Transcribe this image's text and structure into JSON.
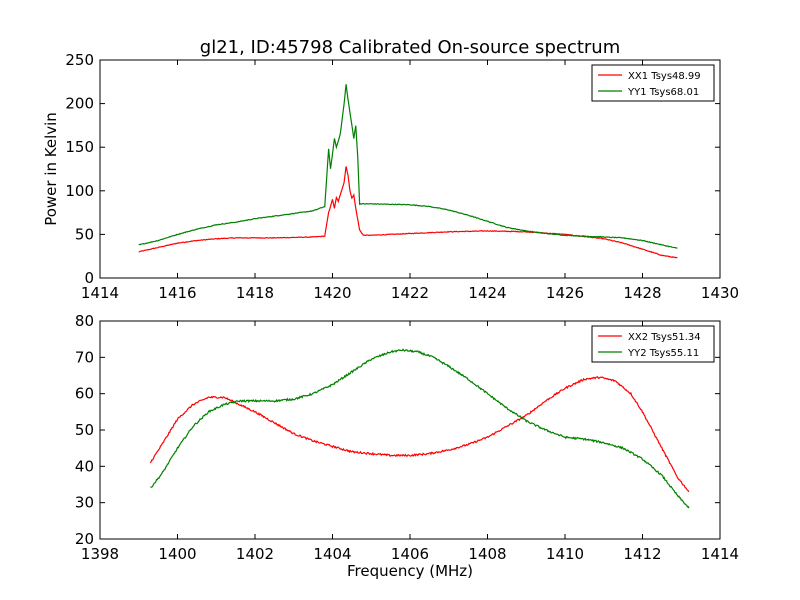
{
  "figure": {
    "title": "gl21, ID:45798 Calibrated On-source spectrum"
  },
  "chart_data": [
    {
      "type": "line",
      "xlabel": "",
      "ylabel": "Power in Kelvin",
      "xlim": [
        1414,
        1430
      ],
      "ylim": [
        0,
        250
      ],
      "xticks": [
        1414,
        1416,
        1418,
        1420,
        1422,
        1424,
        1426,
        1428,
        1430
      ],
      "yticks": [
        0,
        50,
        100,
        150,
        200,
        250
      ],
      "grid": false,
      "legend_position": "top-right",
      "series": [
        {
          "name": "XX1 Tsys48.99",
          "color": "#ff0000",
          "points": [
            [
              1415.0,
              30
            ],
            [
              1415.5,
              35
            ],
            [
              1416.0,
              40
            ],
            [
              1416.5,
              43
            ],
            [
              1417.0,
              45
            ],
            [
              1417.5,
              46
            ],
            [
              1418.0,
              46
            ],
            [
              1418.5,
              46
            ],
            [
              1419.0,
              46.5
            ],
            [
              1419.5,
              47
            ],
            [
              1419.8,
              48
            ],
            [
              1419.9,
              75
            ],
            [
              1420.0,
              90
            ],
            [
              1420.05,
              80
            ],
            [
              1420.1,
              92
            ],
            [
              1420.15,
              88
            ],
            [
              1420.2,
              95
            ],
            [
              1420.3,
              110
            ],
            [
              1420.35,
              128
            ],
            [
              1420.4,
              118
            ],
            [
              1420.45,
              100
            ],
            [
              1420.5,
              92
            ],
            [
              1420.55,
              95
            ],
            [
              1420.6,
              80
            ],
            [
              1420.7,
              55
            ],
            [
              1420.8,
              49
            ],
            [
              1421.0,
              49
            ],
            [
              1422.0,
              51
            ],
            [
              1423.0,
              53
            ],
            [
              1424.0,
              54
            ],
            [
              1425.0,
              53
            ],
            [
              1426.0,
              50
            ],
            [
              1427.0,
              45
            ],
            [
              1427.5,
              40
            ],
            [
              1428.0,
              33
            ],
            [
              1428.5,
              26
            ],
            [
              1428.9,
              23
            ]
          ]
        },
        {
          "name": "YY1 Tsys68.01",
          "color": "#008000",
          "points": [
            [
              1415.0,
              38
            ],
            [
              1415.5,
              43
            ],
            [
              1416.0,
              50
            ],
            [
              1416.5,
              56
            ],
            [
              1417.0,
              61
            ],
            [
              1417.5,
              64
            ],
            [
              1418.0,
              68
            ],
            [
              1418.5,
              71
            ],
            [
              1419.0,
              74
            ],
            [
              1419.5,
              77
            ],
            [
              1419.8,
              82
            ],
            [
              1419.9,
              148
            ],
            [
              1419.95,
              125
            ],
            [
              1420.05,
              160
            ],
            [
              1420.1,
              150
            ],
            [
              1420.2,
              165
            ],
            [
              1420.3,
              200
            ],
            [
              1420.35,
              222
            ],
            [
              1420.4,
              205
            ],
            [
              1420.45,
              190
            ],
            [
              1420.5,
              175
            ],
            [
              1420.55,
              160
            ],
            [
              1420.6,
              175
            ],
            [
              1420.65,
              140
            ],
            [
              1420.7,
              85
            ],
            [
              1421.0,
              85
            ],
            [
              1422.0,
              84
            ],
            [
              1422.5,
              82
            ],
            [
              1423.0,
              78
            ],
            [
              1423.5,
              72
            ],
            [
              1424.0,
              65
            ],
            [
              1424.5,
              58
            ],
            [
              1425.0,
              54
            ],
            [
              1425.5,
              51
            ],
            [
              1426.0,
              49
            ],
            [
              1426.5,
              48
            ],
            [
              1427.0,
              47
            ],
            [
              1427.5,
              46
            ],
            [
              1428.0,
              43
            ],
            [
              1428.5,
              38
            ],
            [
              1428.9,
              34
            ]
          ]
        }
      ]
    },
    {
      "type": "line",
      "xlabel": "Frequency (MHz)",
      "ylabel": "",
      "xlim": [
        1398,
        1414
      ],
      "ylim": [
        20,
        80
      ],
      "xticks": [
        1398,
        1400,
        1402,
        1404,
        1406,
        1408,
        1410,
        1412,
        1414
      ],
      "yticks": [
        20,
        30,
        40,
        50,
        60,
        70,
        80
      ],
      "grid": false,
      "legend_position": "top-right",
      "series": [
        {
          "name": "XX2 Tsys51.34",
          "color": "#ff0000",
          "points": [
            [
              1399.3,
              41
            ],
            [
              1399.6,
              46
            ],
            [
              1400.0,
              53
            ],
            [
              1400.4,
              57
            ],
            [
              1400.8,
              59
            ],
            [
              1401.2,
              59
            ],
            [
              1401.6,
              57
            ],
            [
              1402.0,
              55
            ],
            [
              1402.5,
              52
            ],
            [
              1403.0,
              49
            ],
            [
              1403.5,
              47
            ],
            [
              1404.0,
              45.5
            ],
            [
              1404.5,
              44
            ],
            [
              1405.0,
              43.5
            ],
            [
              1405.5,
              43
            ],
            [
              1406.0,
              43
            ],
            [
              1406.5,
              43.5
            ],
            [
              1407.0,
              44.5
            ],
            [
              1407.5,
              46
            ],
            [
              1408.0,
              48
            ],
            [
              1408.5,
              51
            ],
            [
              1409.0,
              54
            ],
            [
              1409.5,
              58
            ],
            [
              1410.0,
              61.5
            ],
            [
              1410.5,
              64
            ],
            [
              1410.9,
              64.5
            ],
            [
              1411.3,
              63.5
            ],
            [
              1411.7,
              60
            ],
            [
              1412.0,
              55
            ],
            [
              1412.3,
              49
            ],
            [
              1412.6,
              43
            ],
            [
              1412.9,
              37
            ],
            [
              1413.2,
              33
            ]
          ]
        },
        {
          "name": "YY2 Tsys55.11",
          "color": "#008000",
          "points": [
            [
              1399.3,
              34
            ],
            [
              1399.6,
              38
            ],
            [
              1400.0,
              45
            ],
            [
              1400.4,
              51
            ],
            [
              1400.8,
              55
            ],
            [
              1401.2,
              57
            ],
            [
              1401.6,
              58
            ],
            [
              1402.0,
              58
            ],
            [
              1402.5,
              58
            ],
            [
              1403.0,
              58.5
            ],
            [
              1403.5,
              60
            ],
            [
              1404.0,
              62.5
            ],
            [
              1404.5,
              66
            ],
            [
              1405.0,
              69.5
            ],
            [
              1405.5,
              71.5
            ],
            [
              1405.8,
              72
            ],
            [
              1406.2,
              71.5
            ],
            [
              1406.6,
              70
            ],
            [
              1407.0,
              67.5
            ],
            [
              1407.5,
              64
            ],
            [
              1408.0,
              60
            ],
            [
              1408.5,
              56
            ],
            [
              1409.0,
              52.5
            ],
            [
              1409.5,
              50
            ],
            [
              1410.0,
              48
            ],
            [
              1410.5,
              47.5
            ],
            [
              1411.0,
              46.5
            ],
            [
              1411.5,
              45
            ],
            [
              1412.0,
              42
            ],
            [
              1412.5,
              37.5
            ],
            [
              1412.9,
              32
            ],
            [
              1413.2,
              28.5
            ]
          ]
        }
      ]
    }
  ]
}
